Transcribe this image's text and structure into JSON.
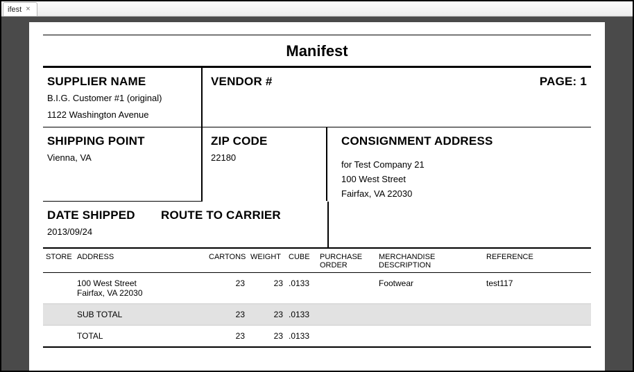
{
  "tab": {
    "label": "ifest"
  },
  "doc": {
    "title": "Manifest",
    "page_label": "PAGE: 1",
    "supplier_name_label": "SUPPLIER NAME",
    "supplier_name_line1": "B.I.G. Customer #1 (original)",
    "supplier_name_line2": "1122 Washington Avenue",
    "vendor_label": "VENDOR #",
    "shipping_point_label": "SHIPPING POINT",
    "shipping_point_value": "Vienna, VA",
    "zip_label": "ZIP CODE",
    "zip_value": "22180",
    "consignment_label": "CONSIGNMENT ADDRESS",
    "consignment_line1": "for Test Company 21",
    "consignment_line2": "100 West Street",
    "consignment_line3": "Fairfax, VA 22030",
    "date_shipped_label": "DATE SHIPPED",
    "date_shipped_value": "2013/09/24",
    "route_label": "ROUTE TO CARRIER"
  },
  "table": {
    "headers": {
      "store": "STORE",
      "address": "ADDRESS",
      "cartons": "CARTONS",
      "weight": "WEIGHT",
      "cube": "CUBE",
      "po": "PURCHASE ORDER",
      "md": "MERCHANDISE DESCRIPTION",
      "ref": "REFERENCE"
    },
    "row": {
      "store": "",
      "address_line1": "100 West Street",
      "address_line2": "Fairfax, VA 22030",
      "cartons": "23",
      "weight": "23",
      "cube": ".0133",
      "po": "",
      "md": "Footwear",
      "ref": "test117"
    },
    "subtotal": {
      "label": "SUB TOTAL",
      "cartons": "23",
      "weight": "23",
      "cube": ".0133"
    },
    "total": {
      "label": "TOTAL",
      "cartons": "23",
      "weight": "23",
      "cube": ".0133"
    }
  },
  "style": {
    "page_bg": "#ffffff",
    "viewer_bg": "#4a4a4a",
    "subtotal_bg": "#e2e2e2",
    "text_color": "#000000",
    "title_fontsize_pt": 16,
    "label_fontsize_pt": 13,
    "body_fontsize_pt": 10,
    "header_fontsize_pt": 8
  }
}
